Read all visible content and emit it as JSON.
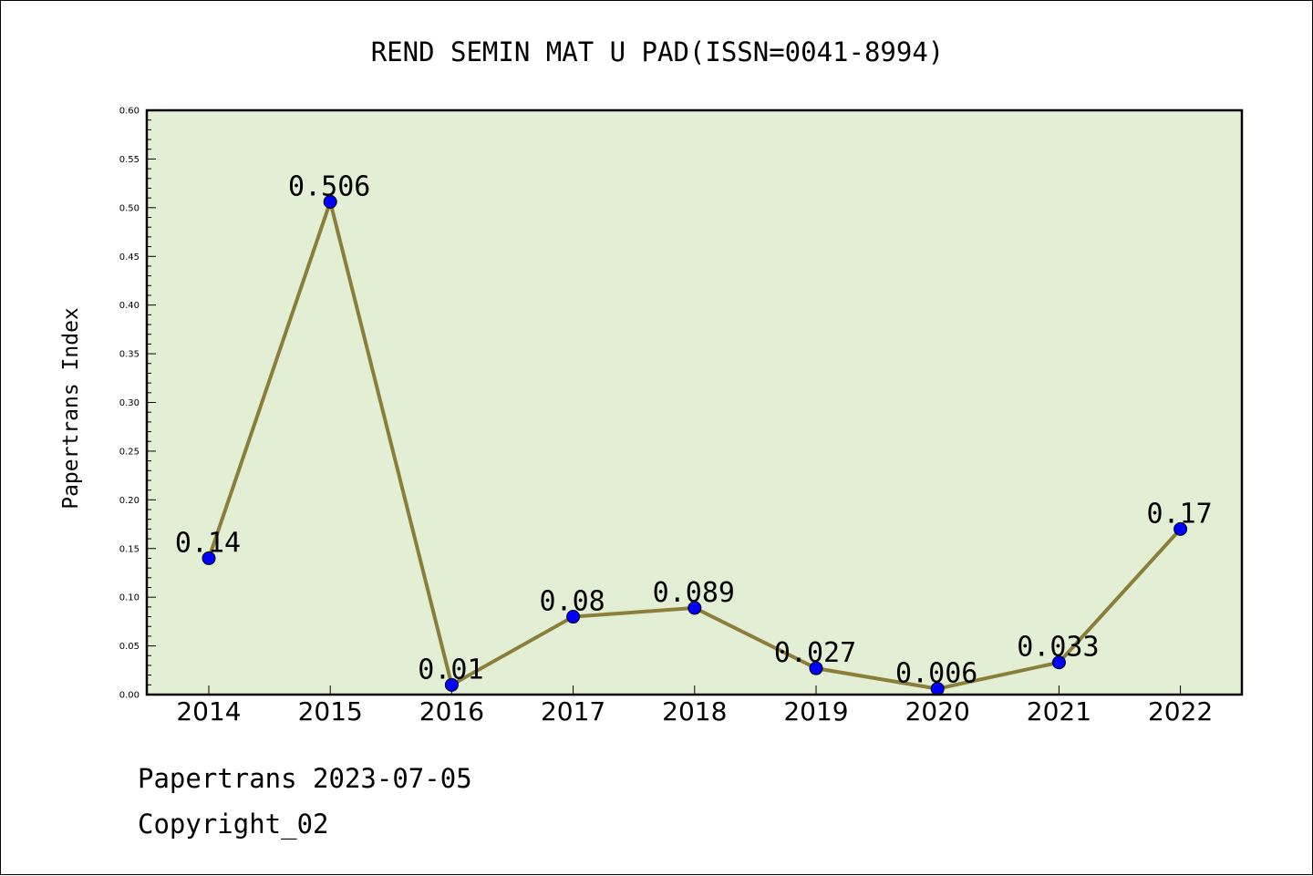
{
  "chart_data": {
    "type": "line",
    "title": "REND SEMIN MAT U PAD(ISSN=0041-8994)",
    "xlabel": "",
    "ylabel": "Papertrans Index",
    "categories": [
      "2014",
      "2015",
      "2016",
      "2017",
      "2018",
      "2019",
      "2020",
      "2021",
      "2022"
    ],
    "values": [
      0.14,
      0.506,
      0.01,
      0.08,
      0.089,
      0.027,
      0.006,
      0.033,
      0.17
    ],
    "data_labels": [
      "0.14",
      "0.506",
      "0.01",
      "0.08",
      "0.089",
      "0.027",
      "0.006",
      "0.033",
      "0.17"
    ],
    "ylim": [
      0,
      0.6
    ],
    "yticks": [
      "0.00",
      "0.05",
      "0.10",
      "0.15",
      "0.20",
      "0.25",
      "0.30",
      "0.35",
      "0.40",
      "0.45",
      "0.50",
      "0.55",
      "0.60"
    ],
    "grid": false,
    "legend": "none",
    "colors": {
      "plot_background": "#e2efd4",
      "line": "#8b7d3a",
      "marker": "#0000ff"
    }
  },
  "footer": {
    "line1": "Papertrans 2023-07-05",
    "line2": "Copyright_02"
  }
}
